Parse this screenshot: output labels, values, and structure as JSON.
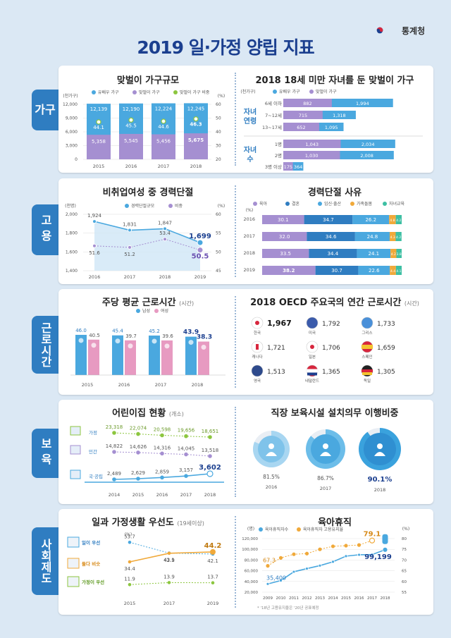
{
  "title": "2019 일·가정 양립 지표",
  "org": "통계청",
  "tabs": [
    "가구",
    "고용",
    "근로시간",
    "보육",
    "사회제도"
  ],
  "household": {
    "title": "맞벌이 가구규모",
    "yunit": "(천가구)",
    "y2unit": "(%)",
    "legend": [
      "유배우 가구",
      "맞벌이 가구",
      "맞벌이 가구 비중"
    ],
    "yticks": [
      "12,000",
      "9,000",
      "6,000",
      "3,000",
      "0"
    ],
    "y2ticks": [
      "60",
      "50",
      "40",
      "30",
      "20"
    ],
    "years": [
      "2015",
      "2016",
      "2017",
      "2018"
    ],
    "married": [
      "12,139",
      "12,190",
      "12,224",
      "12,245"
    ],
    "dual": [
      "5,358",
      "5,545",
      "5,456",
      "5,675"
    ],
    "ratio": [
      "44.1",
      "45.5",
      "44.6",
      "46.3"
    ]
  },
  "children": {
    "title": "2018 18세 미만 자녀를 둔 맞벌이 가구",
    "unit": "(천가구)",
    "legend": [
      "유배우 가구",
      "맞벌이 가구"
    ],
    "group1": "자녀 연령",
    "group2": "자녀 수",
    "rows": [
      {
        "label": "6세 이하",
        "married": "1,994",
        "dual": "882"
      },
      {
        "label": "7~12세",
        "married": "1,318",
        "dual": "715"
      },
      {
        "label": "13~17세",
        "married": "1,095",
        "dual": "652"
      },
      {
        "label": "1명",
        "married": "2,034",
        "dual": "1,043"
      },
      {
        "label": "2명",
        "married": "2,008",
        "dual": "1,030"
      },
      {
        "label": "3명 이상",
        "married": "364",
        "dual": "175"
      }
    ]
  },
  "careerbreak": {
    "title": "비취업여성 중 경력단절",
    "yunit": "(천명)",
    "y2unit": "(%)",
    "legend": [
      "경력단절규모",
      "비중"
    ],
    "yticks": [
      "2,000",
      "1,800",
      "1,600",
      "1,400"
    ],
    "y2ticks": [
      "60",
      "55",
      "50",
      "45"
    ],
    "years": [
      "2016",
      "2017",
      "2018",
      "2019"
    ],
    "scale": [
      "1,924",
      "1,831",
      "1,847",
      "1,699"
    ],
    "ratio": [
      "51.6",
      "51.2",
      "53.4",
      "50.5"
    ]
  },
  "reasons": {
    "title": "경력단절 사유",
    "unit": "(%)",
    "legend": [
      "육아",
      "결혼",
      "임신·출산",
      "가족돌봄",
      "자녀교육"
    ],
    "colors": [
      "#a58fd1",
      "#2f7dc1",
      "#4aa8df",
      "#f0a93a",
      "#3dbfa3"
    ],
    "rows": [
      {
        "year": "2016",
        "values": [
          "30.1",
          "34.7",
          "26.2",
          "4.8",
          "4.2"
        ]
      },
      {
        "year": "2017",
        "values": [
          "32.0",
          "34.6",
          "24.8",
          "4.3",
          "4.2"
        ]
      },
      {
        "year": "2018",
        "values": [
          "33.5",
          "34.4",
          "24.1",
          "4.2",
          "3.8"
        ]
      },
      {
        "year": "2019",
        "values": [
          "38.2",
          "30.7",
          "22.6",
          "4.4",
          "4.1"
        ]
      }
    ]
  },
  "hours": {
    "title": "주당 평균 근로시간",
    "unit": "(시간)",
    "legend": [
      "남성",
      "여성"
    ],
    "years": [
      "2015",
      "2016",
      "2017",
      "2018"
    ],
    "male": [
      "46.0",
      "45.4",
      "45.2",
      "43.9"
    ],
    "female": [
      "40.5",
      "39.7",
      "39.6",
      "38.3"
    ]
  },
  "oecd": {
    "title": "2018 OECD 주요국의 연간 근로시간",
    "unit": "(시간)",
    "countries": [
      {
        "name": "한국",
        "value": "1,967"
      },
      {
        "name": "미국",
        "value": "1,792"
      },
      {
        "name": "그리스",
        "value": "1,733"
      },
      {
        "name": "캐나다",
        "value": "1,721"
      },
      {
        "name": "일본",
        "value": "1,706"
      },
      {
        "name": "스페인",
        "value": "1,659"
      },
      {
        "name": "영국",
        "value": "1,513"
      },
      {
        "name": "네덜란드",
        "value": "1,365"
      },
      {
        "name": "독일",
        "value": "1,305"
      }
    ]
  },
  "daycare": {
    "title": "어린이집 현황",
    "unit": "(개소)",
    "years": [
      "2014",
      "2015",
      "2016",
      "2017",
      "2018"
    ],
    "series": [
      {
        "name": "가정",
        "values": [
          "23,318",
          "22,074",
          "20,598",
          "19,656",
          "18,651"
        ]
      },
      {
        "name": "민간",
        "values": [
          "14,822",
          "14,626",
          "14,316",
          "14,045",
          "13,518"
        ]
      },
      {
        "name": "국·공립",
        "values": [
          "2,489",
          "2,629",
          "2,859",
          "3,157",
          "3,602"
        ]
      }
    ]
  },
  "workplace": {
    "title": "직장 보육시설 설치의무 이행비중",
    "years": [
      "2016",
      "2017",
      "2018"
    ],
    "values": [
      "81.5%",
      "86.7%",
      "90.1%"
    ]
  },
  "priority": {
    "title": "일과 가정생활 우선도",
    "unit": "(19세이상)",
    "y2unit": "(%)",
    "years": [
      "2015",
      "2017",
      "2019"
    ],
    "series": [
      {
        "name": "일이 우선",
        "values": [
          "53.7",
          "43.1",
          "42.1"
        ]
      },
      {
        "name": "둘다 비슷",
        "values": [
          "34.4",
          "42.9",
          "44.2"
        ]
      },
      {
        "name": "가정이 우선",
        "values": [
          "11.9",
          "13.9",
          "13.7"
        ]
      }
    ]
  },
  "leave": {
    "title": "육아휴직",
    "yunit": "(명)",
    "y2unit": "(%)",
    "legend": [
      "육아휴직자수",
      "육아휴직자 고용유지율"
    ],
    "yticks": [
      "120,000",
      "100,000",
      "80,000",
      "60,000",
      "40,000",
      "20,000"
    ],
    "y2ticks": [
      "80",
      "75",
      "70",
      "65",
      "60",
      "55"
    ],
    "years": [
      "2009",
      "2010",
      "2011",
      "2012",
      "2013",
      "2014",
      "2015",
      "2016",
      "2017",
      "2018"
    ],
    "count_labels": [
      "35,400",
      "99,199"
    ],
    "rate_labels": [
      "67.3",
      "79.1"
    ],
    "footnote": "* '18년 고용유지율은 '20년 공표예정"
  },
  "chart_data": [
    {
      "type": "bar",
      "title": "맞벌이 가구규모",
      "categories": [
        "2015",
        "2016",
        "2017",
        "2018"
      ],
      "series": [
        {
          "name": "유배우 가구",
          "values": [
            12139,
            12190,
            12224,
            12245
          ]
        },
        {
          "name": "맞벌이 가구",
          "values": [
            5358,
            5545,
            5456,
            5675
          ]
        },
        {
          "name": "맞벌이 가구 비중",
          "values": [
            44.1,
            45.5,
            44.6,
            46.3
          ]
        }
      ],
      "ylim": [
        0,
        12000
      ]
    },
    {
      "type": "bar",
      "title": "2018 18세 미만 자녀를 둔 맞벌이 가구",
      "categories": [
        "6세 이하",
        "7~12세",
        "13~17세",
        "1명",
        "2명",
        "3명 이상"
      ],
      "series": [
        {
          "name": "유배우 가구",
          "values": [
            1994,
            1318,
            1095,
            2034,
            2008,
            364
          ]
        },
        {
          "name": "맞벌이 가구",
          "values": [
            882,
            715,
            652,
            1043,
            1030,
            175
          ]
        }
      ]
    },
    {
      "type": "line",
      "title": "비취업여성 중 경력단절",
      "categories": [
        "2016",
        "2017",
        "2018",
        "2019"
      ],
      "series": [
        {
          "name": "경력단절규모",
          "values": [
            1924,
            1831,
            1847,
            1699
          ]
        },
        {
          "name": "비중",
          "values": [
            51.6,
            51.2,
            53.4,
            50.5
          ]
        }
      ],
      "ylim": [
        1400,
        2000
      ]
    },
    {
      "type": "bar",
      "title": "경력단절 사유",
      "categories": [
        "2016",
        "2017",
        "2018",
        "2019"
      ],
      "series": [
        {
          "name": "육아",
          "values": [
            30.1,
            32.0,
            33.5,
            38.2
          ]
        },
        {
          "name": "결혼",
          "values": [
            34.7,
            34.6,
            34.4,
            30.7
          ]
        },
        {
          "name": "임신·출산",
          "values": [
            26.2,
            24.8,
            24.1,
            22.6
          ]
        },
        {
          "name": "가족돌봄",
          "values": [
            4.8,
            4.3,
            4.2,
            4.4
          ]
        },
        {
          "name": "자녀교육",
          "values": [
            4.2,
            4.2,
            3.8,
            4.1
          ]
        }
      ]
    },
    {
      "type": "bar",
      "title": "주당 평균 근로시간",
      "categories": [
        "2015",
        "2016",
        "2017",
        "2018"
      ],
      "series": [
        {
          "name": "남성",
          "values": [
            46.0,
            45.4,
            45.2,
            43.9
          ]
        },
        {
          "name": "여성",
          "values": [
            40.5,
            39.7,
            39.6,
            38.3
          ]
        }
      ]
    },
    {
      "type": "table",
      "title": "2018 OECD 주요국의 연간 근로시간",
      "categories": [
        "한국",
        "미국",
        "그리스",
        "캐나다",
        "일본",
        "스페인",
        "영국",
        "네덜란드",
        "독일"
      ],
      "values": [
        1967,
        1792,
        1733,
        1721,
        1706,
        1659,
        1513,
        1365,
        1305
      ]
    },
    {
      "type": "line",
      "title": "어린이집 현황",
      "categories": [
        "2014",
        "2015",
        "2016",
        "2017",
        "2018"
      ],
      "series": [
        {
          "name": "가정",
          "values": [
            23318,
            22074,
            20598,
            19656,
            18651
          ]
        },
        {
          "name": "민간",
          "values": [
            14822,
            14626,
            14316,
            14045,
            13518
          ]
        },
        {
          "name": "국·공립",
          "values": [
            2489,
            2629,
            2859,
            3157,
            3602
          ]
        }
      ]
    },
    {
      "type": "pie",
      "title": "직장 보육시설 설치의무 이행비중",
      "categories": [
        "2016",
        "2017",
        "2018"
      ],
      "values": [
        81.5,
        86.7,
        90.1
      ]
    },
    {
      "type": "line",
      "title": "일과 가정생활 우선도",
      "categories": [
        "2015",
        "2017",
        "2019"
      ],
      "series": [
        {
          "name": "일이 우선",
          "values": [
            53.7,
            43.1,
            42.1
          ]
        },
        {
          "name": "둘다 비슷",
          "values": [
            34.4,
            42.9,
            44.2
          ]
        },
        {
          "name": "가정이 우선",
          "values": [
            11.9,
            13.9,
            13.7
          ]
        }
      ]
    },
    {
      "type": "line",
      "title": "육아휴직",
      "categories": [
        "2009",
        "2010",
        "2011",
        "2012",
        "2013",
        "2014",
        "2015",
        "2016",
        "2017",
        "2018"
      ],
      "series": [
        {
          "name": "육아휴직자수",
          "values": [
            35400,
            41700,
            58100,
            64000,
            69600,
            76800,
            87300,
            89800,
            90100,
            99199
          ]
        },
        {
          "name": "육아휴직자 고용유지율",
          "values": [
            67.3,
            71.0,
            72.7,
            73.0,
            75.0,
            76.4,
            76.7,
            77.0,
            79.1,
            null
          ]
        }
      ],
      "ylim": [
        20000,
        120000
      ]
    }
  ]
}
